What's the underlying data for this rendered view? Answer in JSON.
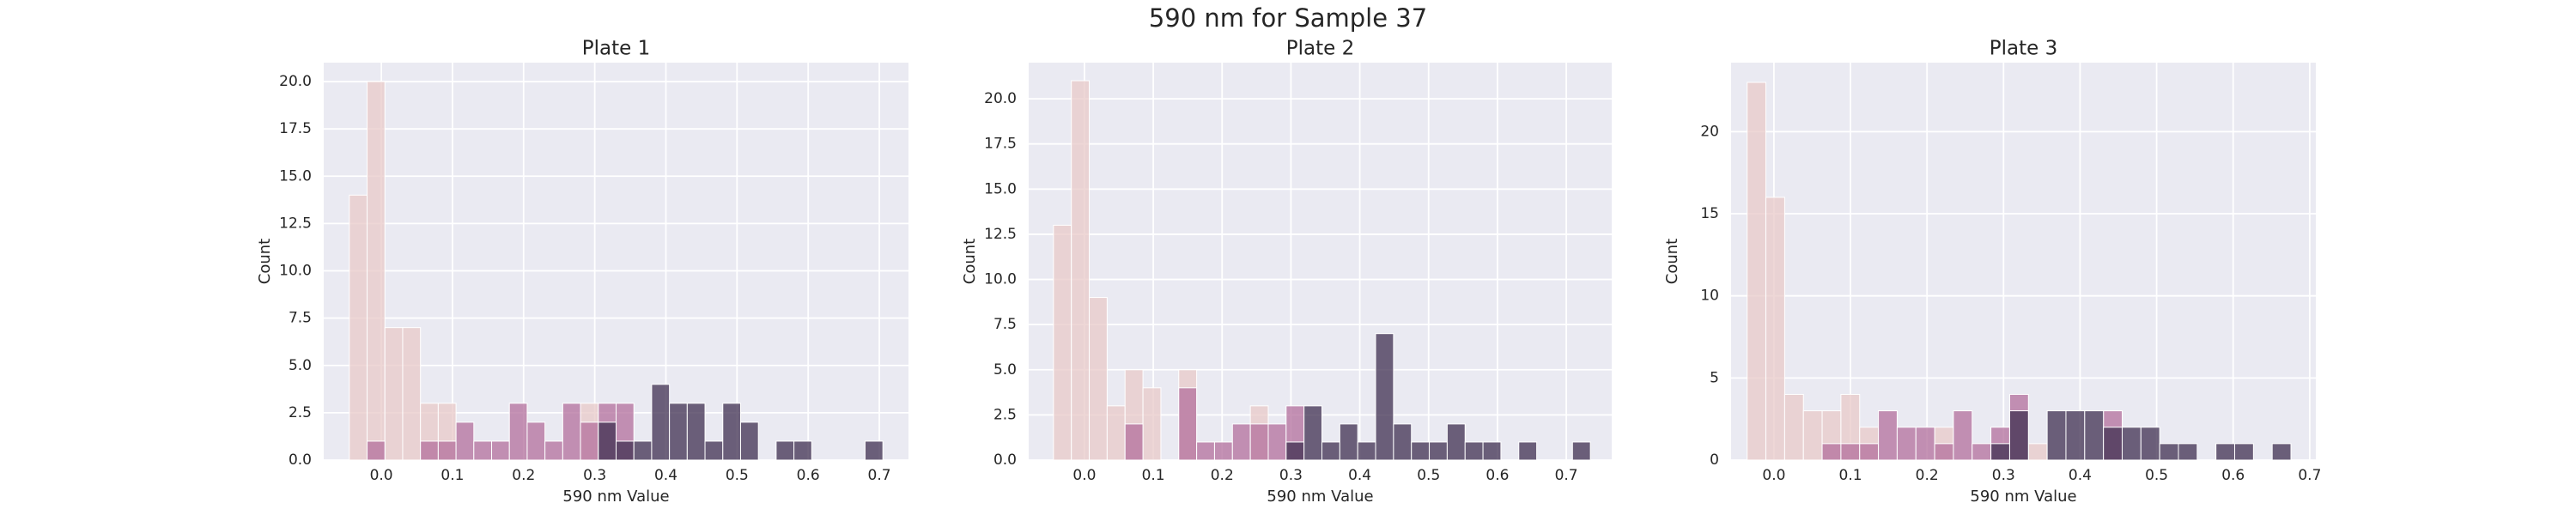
{
  "title": "590 nm for Sample 37",
  "chart_data": [
    {
      "type": "histogram",
      "title": "Plate 1",
      "xlabel": "590 nm Value",
      "ylabel": "Count",
      "grid": true,
      "bins": [
        -0.045,
        -0.02,
        0.005,
        0.03,
        0.055,
        0.08,
        0.105,
        0.13,
        0.155,
        0.18,
        0.205,
        0.23,
        0.255,
        0.28,
        0.305,
        0.33,
        0.355,
        0.38,
        0.405,
        0.43,
        0.455,
        0.48,
        0.505,
        0.53,
        0.555,
        0.58,
        0.605,
        0.63,
        0.655,
        0.68,
        0.705
      ],
      "series": [
        {
          "color": "#e8c9c8",
          "values": [
            14,
            20,
            7,
            7,
            3,
            3,
            0,
            0,
            0,
            0,
            0,
            0,
            0,
            3,
            0,
            0,
            0,
            0,
            0,
            0,
            0,
            0,
            0,
            0,
            0,
            0,
            0,
            0,
            0,
            0
          ]
        },
        {
          "color": "#b36f9c",
          "values": [
            0,
            1,
            0,
            0,
            1,
            1,
            2,
            1,
            1,
            3,
            2,
            1,
            3,
            2,
            3,
            3,
            0,
            0,
            0,
            0,
            0,
            0,
            0,
            0,
            0,
            0,
            0,
            0,
            0,
            0
          ]
        },
        {
          "color": "#3f2f50",
          "values": [
            0,
            0,
            0,
            0,
            0,
            0,
            0,
            0,
            0,
            0,
            0,
            0,
            0,
            0,
            2,
            1,
            1,
            4,
            3,
            3,
            1,
            3,
            2,
            0,
            1,
            1,
            0,
            0,
            0,
            1
          ]
        }
      ],
      "xlim": [
        -0.081,
        0.741
      ],
      "ylim": [
        0,
        21
      ],
      "xticks": [
        {
          "value": 0,
          "label": "0.0"
        },
        0.1,
        0.2,
        0.3,
        0.4,
        0.5,
        0.6,
        0.7
      ],
      "yticks": [
        {
          "value": 0,
          "label": "0.0"
        },
        2.5,
        {
          "value": 5,
          "label": "5.0"
        },
        7.5,
        {
          "value": 10,
          "label": "10.0"
        },
        12.5,
        {
          "value": 15,
          "label": "15.0"
        },
        17.5,
        {
          "value": 20,
          "label": "20.0"
        }
      ]
    },
    {
      "type": "histogram",
      "title": "Plate 2",
      "xlabel": "590 nm Value",
      "ylabel": "Count",
      "grid": true,
      "bins": [
        -0.045,
        -0.019,
        0.007,
        0.033,
        0.059,
        0.085,
        0.111,
        0.137,
        0.163,
        0.189,
        0.215,
        0.241,
        0.267,
        0.293,
        0.319,
        0.345,
        0.371,
        0.397,
        0.423,
        0.449,
        0.475,
        0.501,
        0.527,
        0.553,
        0.579,
        0.605,
        0.631,
        0.657,
        0.683,
        0.709,
        0.735
      ],
      "series": [
        {
          "color": "#e8c9c8",
          "values": [
            13,
            21,
            9,
            3,
            5,
            4,
            0,
            5,
            0,
            0,
            0,
            3,
            0,
            0,
            0,
            0,
            0,
            0,
            0,
            0,
            0,
            0,
            0,
            0,
            0,
            0,
            0,
            0,
            0,
            0
          ]
        },
        {
          "color": "#b36f9c",
          "values": [
            0,
            0,
            0,
            0,
            2,
            0,
            0,
            4,
            1,
            1,
            2,
            2,
            2,
            3,
            0,
            0,
            0,
            0,
            0,
            0,
            0,
            0,
            0,
            0,
            0,
            0,
            0,
            0,
            0,
            0
          ]
        },
        {
          "color": "#3f2f50",
          "values": [
            0,
            0,
            0,
            0,
            0,
            0,
            0,
            0,
            0,
            0,
            0,
            0,
            0,
            1,
            3,
            1,
            2,
            1,
            7,
            2,
            1,
            1,
            2,
            1,
            1,
            0,
            1,
            0,
            0,
            1
          ]
        }
      ],
      "xlim": [
        -0.081,
        0.766
      ],
      "ylim": [
        0,
        22
      ],
      "xticks": [
        {
          "value": 0,
          "label": "0.0"
        },
        0.1,
        0.2,
        0.3,
        0.4,
        0.5,
        0.6,
        0.7
      ],
      "yticks": [
        {
          "value": 0,
          "label": "0.0"
        },
        2.5,
        {
          "value": 5,
          "label": "5.0"
        },
        7.5,
        {
          "value": 10,
          "label": "10.0"
        },
        12.5,
        {
          "value": 15,
          "label": "15.0"
        },
        17.5,
        {
          "value": 20,
          "label": "20.0"
        }
      ]
    },
    {
      "type": "histogram",
      "title": "Plate 3",
      "xlabel": "590 nm Value",
      "ylabel": "Count",
      "grid": true,
      "bins": [
        -0.035,
        -0.0105,
        0.014,
        0.0385,
        0.063,
        0.0875,
        0.112,
        0.1365,
        0.161,
        0.1855,
        0.21,
        0.2345,
        0.259,
        0.2835,
        0.308,
        0.3325,
        0.357,
        0.3815,
        0.406,
        0.4305,
        0.455,
        0.4795,
        0.504,
        0.5285,
        0.553,
        0.5775,
        0.602,
        0.6265,
        0.651,
        0.6755
      ],
      "series": [
        {
          "color": "#e8c9c8",
          "values": [
            23,
            16,
            4,
            3,
            3,
            4,
            2,
            0,
            0,
            0,
            2,
            0,
            0,
            0,
            0,
            1,
            0,
            0,
            0,
            0,
            0,
            0,
            0,
            0,
            0,
            0,
            0,
            0,
            0
          ]
        },
        {
          "color": "#b36f9c",
          "values": [
            0,
            0,
            0,
            0,
            1,
            1,
            1,
            3,
            2,
            2,
            1,
            3,
            1,
            2,
            4,
            0,
            0,
            0,
            0,
            3,
            0,
            0,
            0,
            0,
            0,
            0,
            0,
            0,
            0
          ]
        },
        {
          "color": "#3f2f50",
          "values": [
            0,
            0,
            0,
            0,
            0,
            0,
            0,
            0,
            0,
            0,
            0,
            0,
            0,
            1,
            3,
            0,
            3,
            3,
            3,
            2,
            2,
            2,
            1,
            1,
            0,
            1,
            1,
            0,
            1
          ]
        }
      ],
      "xlim": [
        -0.056,
        0.708
      ],
      "ylim": [
        0,
        24.2
      ],
      "xticks": [
        {
          "value": 0,
          "label": "0.0"
        },
        0.1,
        0.2,
        0.3,
        0.4,
        0.5,
        0.6,
        0.7
      ],
      "yticks": [
        0,
        5,
        10,
        15,
        20
      ]
    }
  ]
}
